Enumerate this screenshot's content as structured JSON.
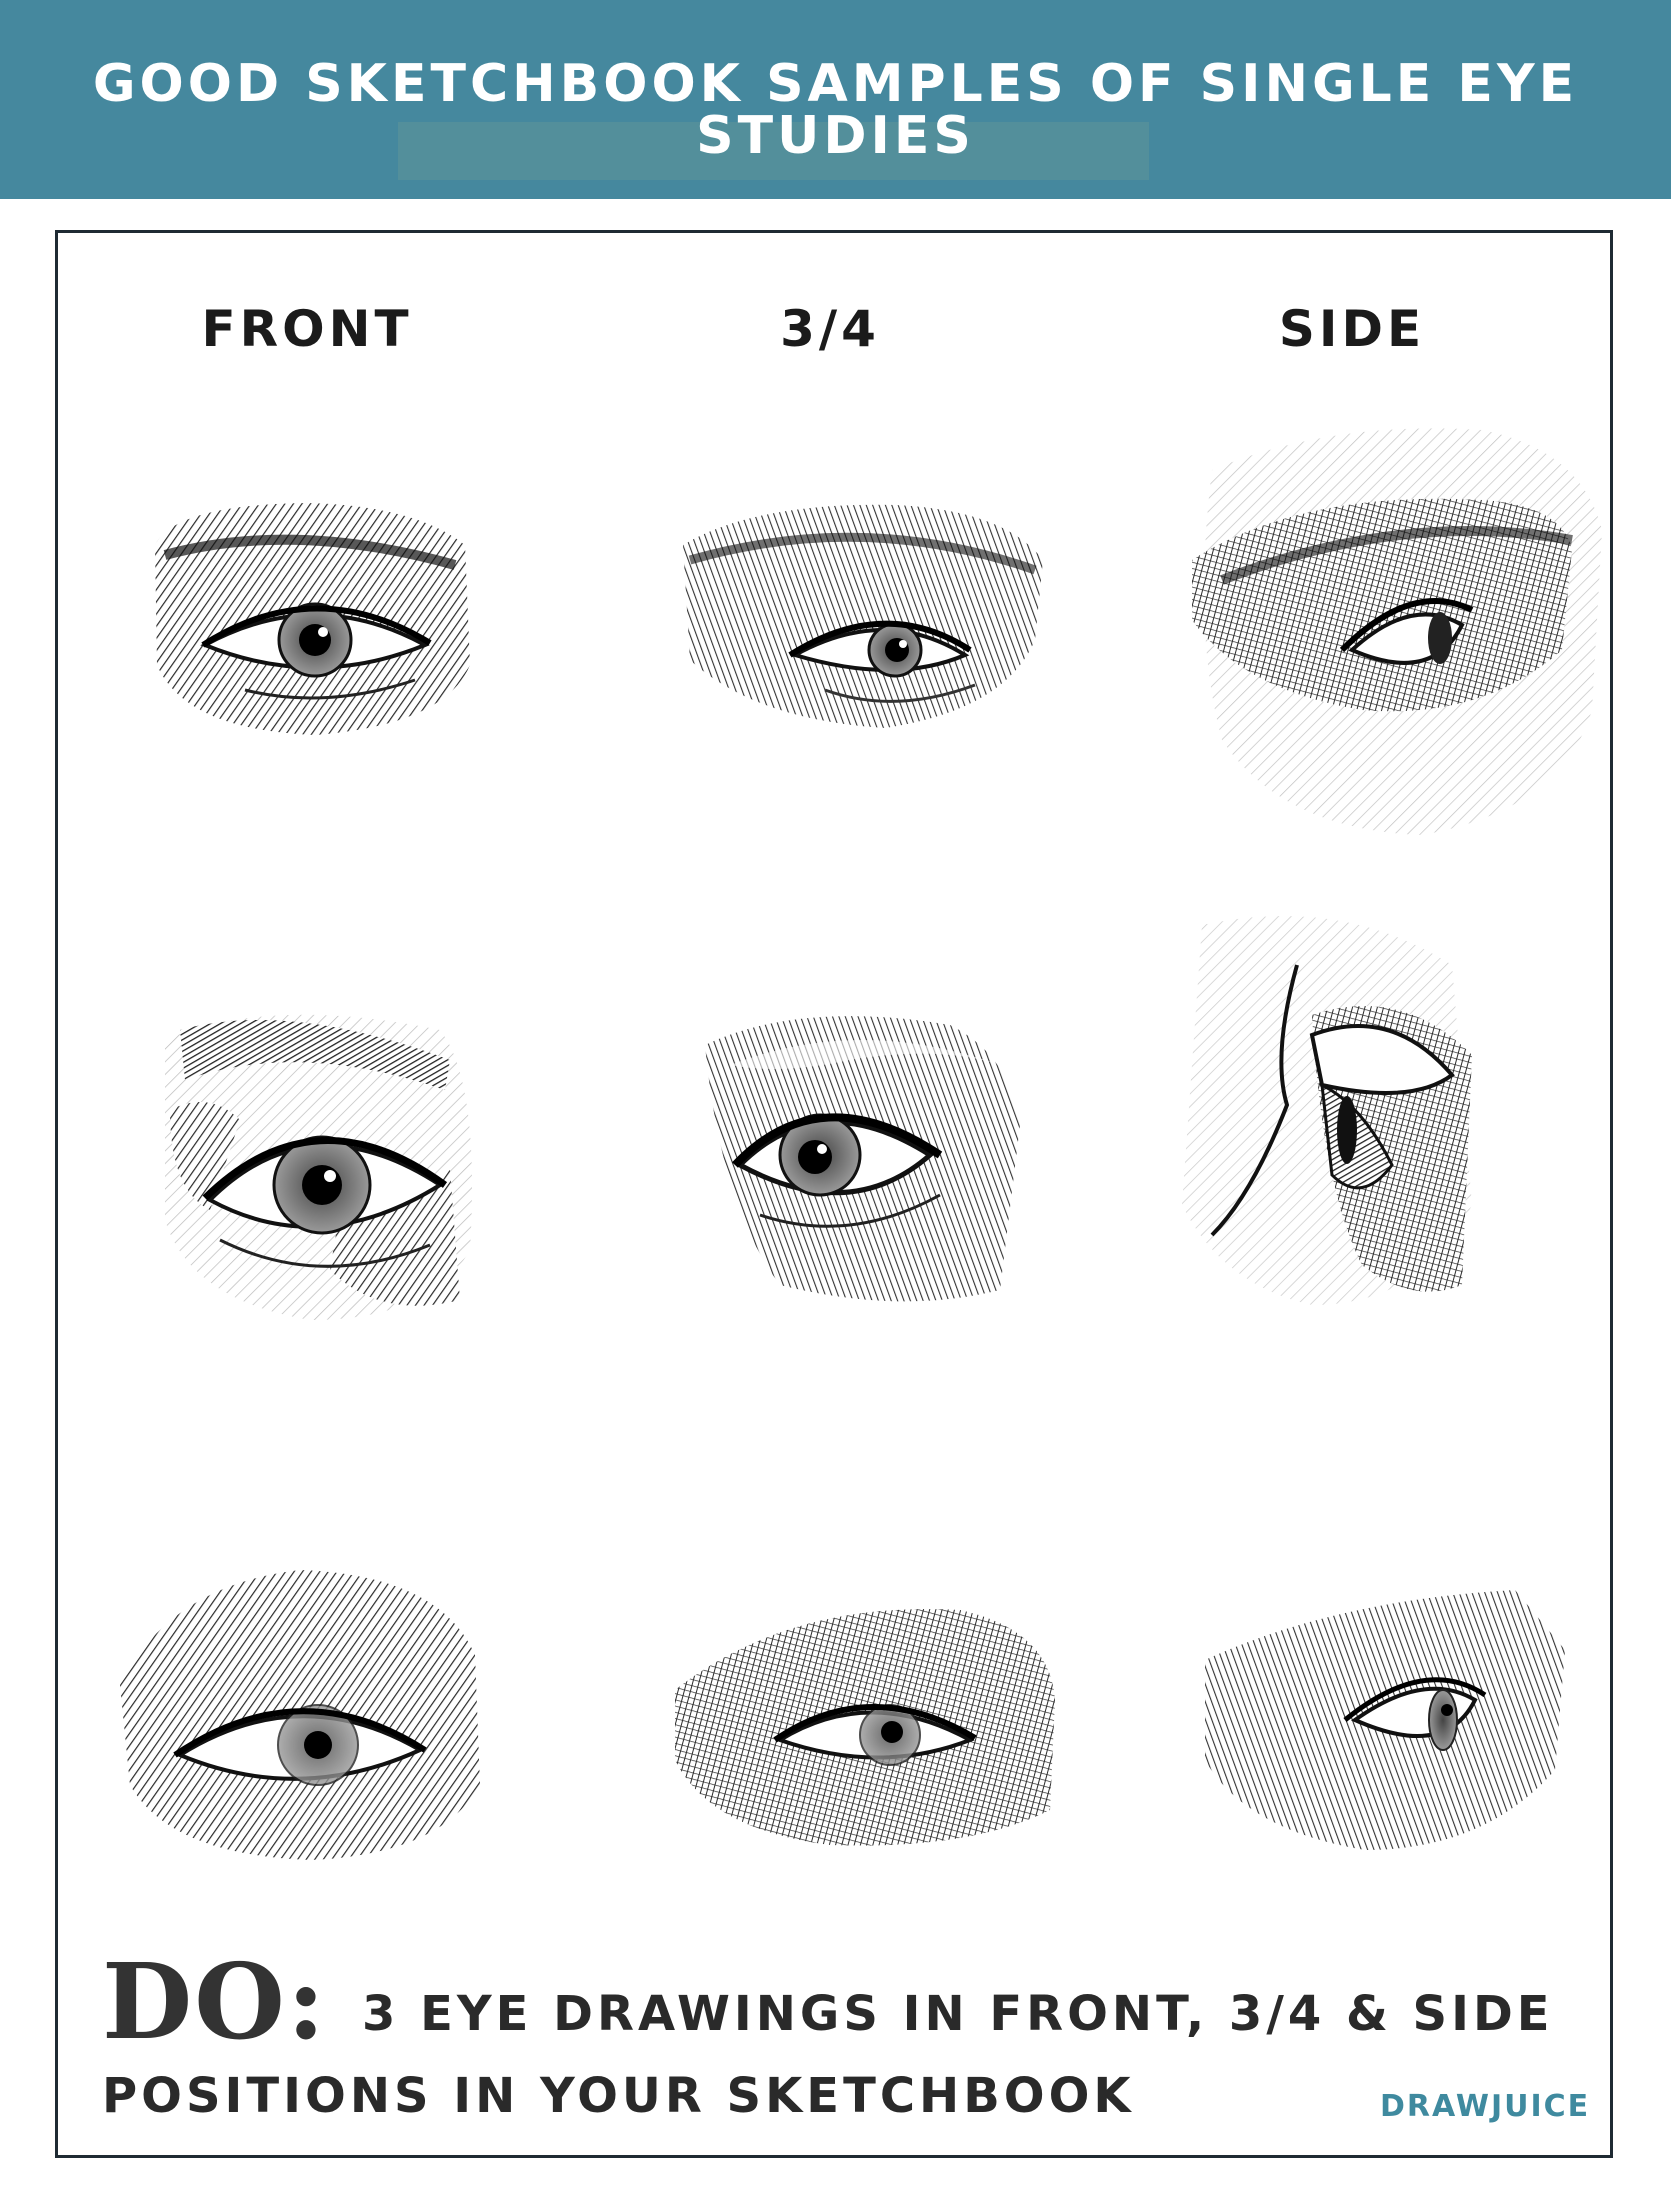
{
  "header": {
    "title": "GOOD SKETCHBOOK SAMPLES OF SINGLE EYE STUDIES"
  },
  "columns": [
    {
      "label": "FRONT"
    },
    {
      "label": "3/4"
    },
    {
      "label": "SIDE"
    }
  ],
  "instruction": {
    "lead": "DO:",
    "line1": "3 EYE DRAWINGS IN FRONT, 3/4 & SIDE",
    "line2": "POSITIONS IN YOUR SKETCHBOOK"
  },
  "brand": "DRAWJUICE",
  "sketches": [
    {
      "view": "front",
      "icon": "front-eye-sketch"
    },
    {
      "view": "three-quarter",
      "icon": "three-quarter-eye-sketch"
    },
    {
      "view": "side",
      "icon": "side-eye-sketch"
    },
    {
      "view": "front",
      "icon": "front-eye-sketch"
    },
    {
      "view": "three-quarter",
      "icon": "three-quarter-eye-sketch"
    },
    {
      "view": "side",
      "icon": "side-eye-sketch"
    },
    {
      "view": "front",
      "icon": "front-eye-sketch"
    },
    {
      "view": "three-quarter",
      "icon": "three-quarter-eye-sketch"
    },
    {
      "view": "side",
      "icon": "side-eye-sketch"
    }
  ]
}
